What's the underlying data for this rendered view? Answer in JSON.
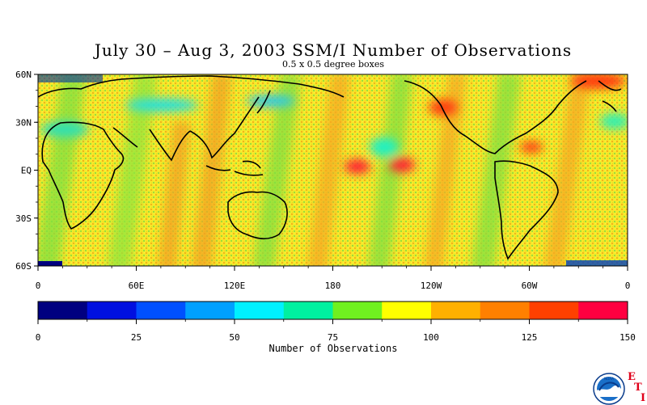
{
  "title": "July 30 – Aug 3, 2003 SSM/I Number of Observations",
  "subtitle": "0.5 x 0.5 degree boxes",
  "map": {
    "lat_labels": [
      "60N",
      "30N",
      "EQ",
      "30S",
      "60S"
    ],
    "lon_labels": [
      "0",
      "60E",
      "120E",
      "180",
      "120W",
      "60W",
      "0"
    ],
    "lat_range": [
      -60,
      60
    ],
    "lon_range": [
      0,
      360
    ],
    "background_color": "#f5e82a"
  },
  "colorbar": {
    "colors": [
      "#000080",
      "#0010e0",
      "#0050ff",
      "#00a0ff",
      "#00f0ff",
      "#00f0a0",
      "#70f020",
      "#ffff00",
      "#ffb000",
      "#ff8000",
      "#ff4000",
      "#ff0040"
    ],
    "tick_labels": [
      "0",
      "25",
      "50",
      "75",
      "100",
      "125",
      "150"
    ],
    "range": [
      0,
      150
    ],
    "label": "Number of Observations"
  },
  "logo": {
    "icon": "noaa-logo-icon",
    "letters": [
      "E",
      "T",
      "I"
    ]
  }
}
